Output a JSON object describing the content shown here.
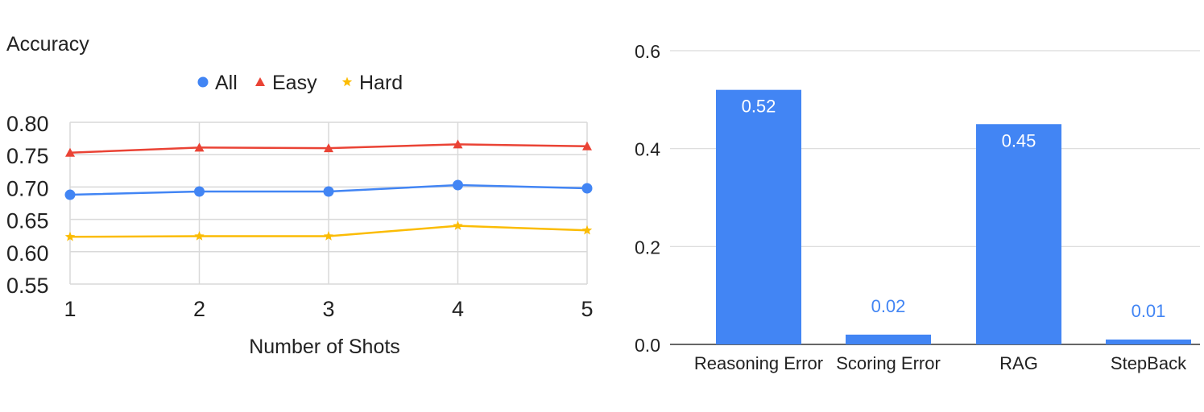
{
  "chart_data": [
    {
      "type": "line",
      "ylabel": "Accuracy",
      "xlabel": "Number of Shots",
      "x": [
        1,
        2,
        3,
        4,
        5
      ],
      "ylim": [
        0.55,
        0.8
      ],
      "yticks": [
        "0.80",
        "0.75",
        "0.70",
        "0.65",
        "0.60",
        "0.55"
      ],
      "grid": true,
      "legend": "top",
      "series": [
        {
          "name": "All",
          "color": "#4285F4",
          "marker": "circle",
          "values": [
            0.688,
            0.693,
            0.693,
            0.703,
            0.698
          ]
        },
        {
          "name": "Easy",
          "color": "#EA4335",
          "marker": "triangle",
          "values": [
            0.753,
            0.761,
            0.76,
            0.766,
            0.763
          ]
        },
        {
          "name": "Hard",
          "color": "#FBBC04",
          "marker": "star",
          "values": [
            0.623,
            0.624,
            0.624,
            0.64,
            0.633
          ]
        }
      ]
    },
    {
      "type": "bar",
      "categories": [
        "Reasoning Error",
        "Scoring Error",
        "RAG",
        "StepBack"
      ],
      "values": [
        0.52,
        0.02,
        0.45,
        0.01
      ],
      "data_labels": [
        "0.52",
        "0.02",
        "0.45",
        "0.01"
      ],
      "ylim": [
        0,
        0.6
      ],
      "yticks": [
        "0.0",
        "0.2",
        "0.4",
        "0.6"
      ],
      "grid": true,
      "color": "#4285F4"
    }
  ]
}
